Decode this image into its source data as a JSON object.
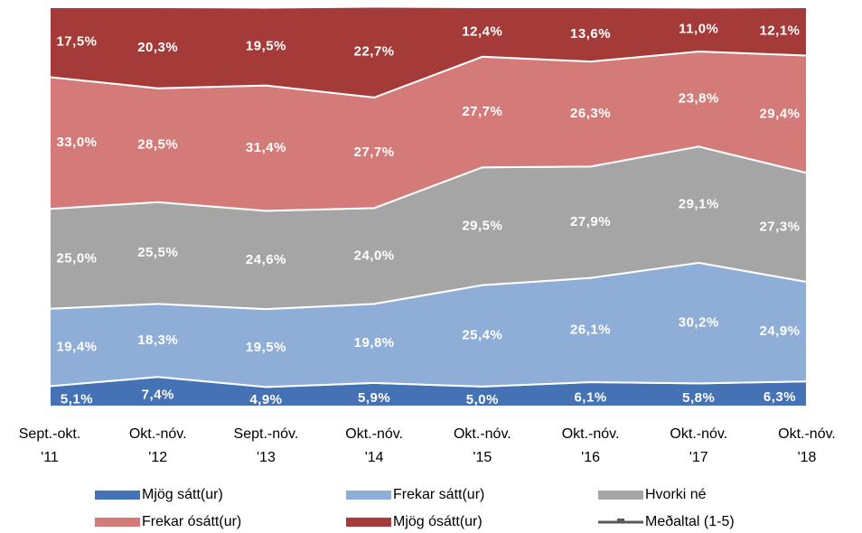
{
  "chart_data": {
    "type": "stacked_area",
    "categories": [
      [
        "Sept.-okt.",
        "'11"
      ],
      [
        "Okt.-nóv.",
        "'12"
      ],
      [
        "Sept.-nóv.",
        "'13"
      ],
      [
        "Okt.-nóv.",
        "'14"
      ],
      [
        "Okt.-nóv.",
        "'15"
      ],
      [
        "Okt.-nóv.",
        "'16"
      ],
      [
        "Okt.-nóv.",
        "'17"
      ],
      [
        "Okt.-nóv.",
        "'18"
      ]
    ],
    "ylim": [
      0,
      100
    ],
    "series": [
      {
        "name": "Mjög sátt(ur)",
        "color": "#4472b4",
        "values": [
          5.1,
          7.4,
          4.9,
          5.9,
          5.0,
          6.1,
          5.8,
          6.3
        ],
        "value_labels": [
          "5,1%",
          "7,4%",
          "4,9%",
          "5,9%",
          "5,0%",
          "6,1%",
          "5,8%",
          "6,3%"
        ]
      },
      {
        "name": "Frekar sátt(ur)",
        "color": "#8eaed8",
        "values": [
          19.4,
          18.3,
          19.5,
          19.8,
          25.4,
          26.1,
          30.2,
          24.9
        ],
        "value_labels": [
          "19,4%",
          "18,3%",
          "19,5%",
          "19,8%",
          "25,4%",
          "26,1%",
          "30,2%",
          "24,9%"
        ]
      },
      {
        "name": "Hvorki né",
        "color": "#a5a5a5",
        "values": [
          25.0,
          25.5,
          24.6,
          24.0,
          29.5,
          27.9,
          29.1,
          27.3
        ],
        "value_labels": [
          "25,0%",
          "25,5%",
          "24,6%",
          "24,0%",
          "29,5%",
          "27,9%",
          "29,1%",
          "27,3%"
        ]
      },
      {
        "name": "Frekar ósátt(ur)",
        "color": "#d47b79",
        "values": [
          33.0,
          28.5,
          31.4,
          27.7,
          27.7,
          26.3,
          23.8,
          29.4
        ],
        "value_labels": [
          "33,0%",
          "28,5%",
          "31,4%",
          "27,7%",
          "27,7%",
          "26,3%",
          "23,8%",
          "29,4%"
        ]
      },
      {
        "name": "Mjög ósátt(ur)",
        "color": "#a53b39",
        "values": [
          17.5,
          20.3,
          19.5,
          22.7,
          12.4,
          13.6,
          11.0,
          12.1
        ],
        "value_labels": [
          "17,5%",
          "20,3%",
          "19,5%",
          "22,7%",
          "12,4%",
          "13,6%",
          "11,0%",
          "12,1%"
        ]
      }
    ],
    "extra_legend": {
      "name": "Meðaltal (1-5)",
      "color": "#595959"
    }
  }
}
